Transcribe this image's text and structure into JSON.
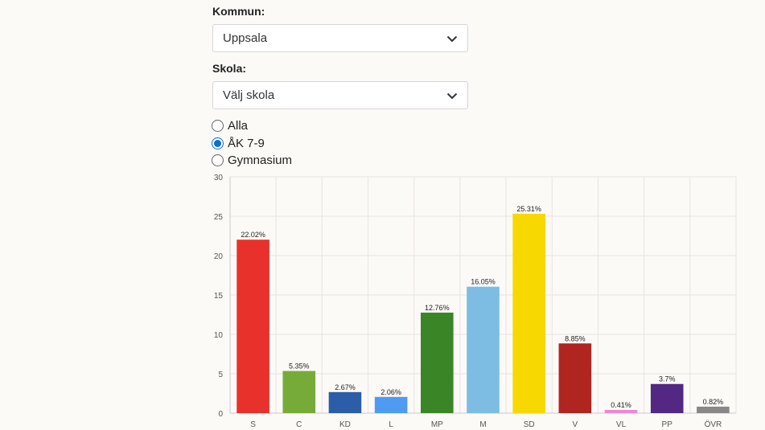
{
  "kommun": {
    "label": "Kommun:",
    "value": "Uppsala"
  },
  "skola": {
    "label": "Skola:",
    "value": "Välj skola"
  },
  "filters": [
    {
      "label": "Alla",
      "checked": false
    },
    {
      "label": "ÅK 7-9",
      "checked": true
    },
    {
      "label": "Gymnasium",
      "checked": false
    }
  ],
  "chart_data": {
    "type": "bar",
    "categories": [
      "S",
      "C",
      "KD",
      "L",
      "MP",
      "M",
      "SD",
      "V",
      "VL",
      "PP",
      "ÖVR"
    ],
    "values": [
      22.02,
      5.35,
      2.67,
      2.06,
      12.76,
      16.05,
      25.31,
      8.85,
      0.41,
      3.7,
      0.82
    ],
    "data_labels": [
      "22.02%",
      "5.35%",
      "2.67%",
      "2.06%",
      "12.76%",
      "16.05%",
      "25.31%",
      "8.85%",
      "0.41%",
      "3.7%",
      "0.82%"
    ],
    "colors": [
      "#e8312a",
      "#77ab39",
      "#2c5ea8",
      "#4f9bf2",
      "#3a8526",
      "#7dbde3",
      "#f7d800",
      "#b02520",
      "#ee88d4",
      "#522883",
      "#888888"
    ],
    "yticks": [
      0,
      5,
      10,
      15,
      20,
      25,
      30
    ],
    "ylim": [
      0,
      30
    ],
    "grid": true
  }
}
